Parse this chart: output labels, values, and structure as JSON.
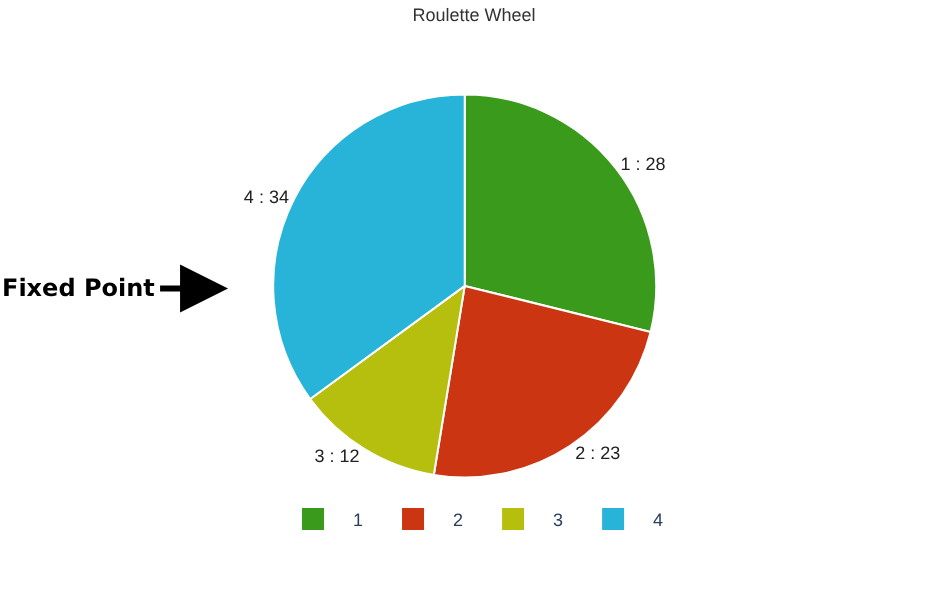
{
  "chart_data": {
    "type": "pie",
    "title": "Roulette Wheel",
    "categories": [
      "1",
      "2",
      "3",
      "4"
    ],
    "values": [
      28,
      23,
      12,
      34
    ],
    "value_labels": [
      "1 : 28",
      "2 : 23",
      "3 : 12",
      "4 : 34"
    ],
    "colors": [
      "#3a9a1c",
      "#cc3512",
      "#b7bf0e",
      "#28b4d8"
    ],
    "annotations": [
      "Fixed Point"
    ],
    "legend": "bottom"
  }
}
